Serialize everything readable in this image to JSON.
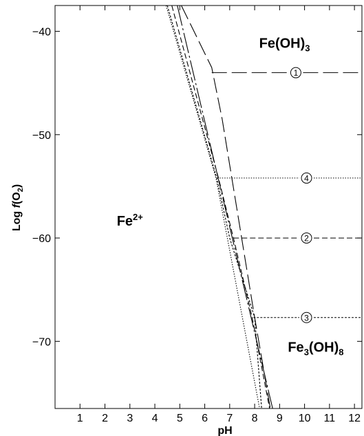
{
  "chart_data": {
    "type": "line",
    "title": "",
    "xlabel": "pH",
    "ylabel": {
      "prefix": "Log ",
      "italic": "f",
      "open": "(O",
      "sub": "2",
      "close": ")"
    },
    "xlim": [
      0,
      12.3
    ],
    "ylim": [
      -76.5,
      -37.5
    ],
    "xticks": [
      1,
      2,
      3,
      4,
      5,
      6,
      7,
      8,
      9,
      10,
      11,
      12
    ],
    "xtick_labels": [
      "1",
      "2",
      "3",
      "4",
      "5",
      "6",
      "7",
      "8",
      "9",
      "10",
      "11",
      "12"
    ],
    "yticks": [
      -40,
      -50,
      -60,
      -70
    ],
    "ytick_labels": [
      "−40",
      "−50",
      "−60",
      "−70"
    ],
    "grid": false,
    "series": [
      {
        "style": "long-dash",
        "points": [
          [
            5.06,
            -37.5
          ],
          [
            6.28,
            -43.5
          ],
          [
            6.7,
            -48.5
          ],
          [
            7.48,
            -60
          ],
          [
            8.0,
            -67.7
          ],
          [
            8.63,
            -76.5
          ]
        ]
      },
      {
        "style": "dash-dot",
        "points": [
          [
            4.9,
            -37.5
          ],
          [
            8.72,
            -76.5
          ]
        ]
      },
      {
        "style": "dash",
        "points": [
          [
            4.68,
            -37.5
          ],
          [
            6.55,
            -54.2
          ],
          [
            7.15,
            -60
          ],
          [
            7.9,
            -67.7
          ],
          [
            8.6,
            -76.5
          ]
        ]
      },
      {
        "style": "dotted",
        "points": [
          [
            4.45,
            -37.5
          ],
          [
            6.45,
            -54.2
          ],
          [
            8.2,
            -76.5
          ]
        ]
      },
      {
        "style": "fine-dash",
        "points": [
          [
            4.5,
            -37.5
          ],
          [
            6.48,
            -54.2
          ],
          [
            7.0,
            -60
          ],
          [
            8.0,
            -67.7
          ],
          [
            8.28,
            -76.5
          ]
        ]
      }
    ],
    "boundaries": [
      {
        "marker": "1",
        "y": -44,
        "x_start": 6.28,
        "x_end": 12.3,
        "style": "long-dash",
        "marker_x": 9.65
      },
      {
        "marker": "4",
        "y": -54.2,
        "x_start": 6.5,
        "x_end": 12.3,
        "style": "dotted",
        "marker_x": 10.08
      },
      {
        "marker": "2",
        "y": -60,
        "x_start": 7.15,
        "x_end": 12.3,
        "style": "dash",
        "marker_x": 10.08
      },
      {
        "marker": "3",
        "y": -67.7,
        "x_start": 7.95,
        "x_end": 12.3,
        "style": "fine-dash",
        "marker_x": 10.08
      }
    ],
    "regions": [
      {
        "base": "Fe",
        "sup": "2+",
        "sub": "",
        "tail": "",
        "x": 3.0,
        "y": -58.8
      },
      {
        "base": "Fe(OH)",
        "sup": "",
        "sub": "3",
        "tail": "",
        "x": 9.2,
        "y": -41.6
      },
      {
        "base": "Fe",
        "sup": "",
        "sub": "3",
        "tail": "(OH)",
        "sub2": "8",
        "x": 10.45,
        "y": -71.0
      }
    ]
  }
}
